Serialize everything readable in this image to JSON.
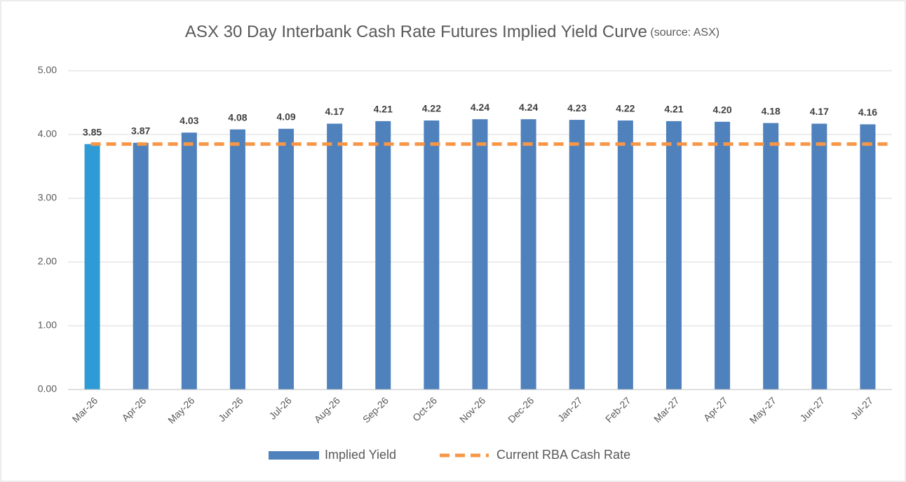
{
  "chart_data": {
    "type": "bar",
    "title": "ASX 30 Day Interbank Cash Rate Futures Implied Yield Curve",
    "subtitle": "(source: ASX)",
    "categories": [
      "Mar-26",
      "Apr-26",
      "May-26",
      "Jun-26",
      "Jul-26",
      "Aug-26",
      "Sep-26",
      "Oct-26",
      "Nov-26",
      "Dec-26",
      "Jan-27",
      "Feb-27",
      "Mar-27",
      "Apr-27",
      "May-27",
      "Jun-27",
      "Jul-27"
    ],
    "series": [
      {
        "name": "Implied Yield",
        "type": "bar",
        "color": "#4f81bd",
        "colors": [
          "#2e9bd6",
          "#4f81bd",
          "#4f81bd",
          "#4f81bd",
          "#4f81bd",
          "#4f81bd",
          "#4f81bd",
          "#4f81bd",
          "#4f81bd",
          "#4f81bd",
          "#4f81bd",
          "#4f81bd",
          "#4f81bd",
          "#4f81bd",
          "#4f81bd",
          "#4f81bd",
          "#4f81bd"
        ],
        "values": [
          3.85,
          3.87,
          4.03,
          4.08,
          4.09,
          4.17,
          4.21,
          4.22,
          4.24,
          4.24,
          4.23,
          4.22,
          4.21,
          4.2,
          4.18,
          4.17,
          4.16
        ],
        "value_labels": [
          "3.85",
          "3.87",
          "4.03",
          "4.08",
          "4.09",
          "4.17",
          "4.21",
          "4.22",
          "4.24",
          "4.24",
          "4.23",
          "4.22",
          "4.21",
          "4.20",
          "4.18",
          "4.17",
          "4.16"
        ]
      },
      {
        "name": "Current RBA  Cash Rate",
        "type": "line",
        "color": "#f79646",
        "dashed": true,
        "value": 3.85
      }
    ],
    "ylim": [
      0,
      5
    ],
    "yticks": [
      {
        "value": 0,
        "label": "0.00"
      },
      {
        "value": 1,
        "label": "1.00"
      },
      {
        "value": 2,
        "label": "2.00"
      },
      {
        "value": 3,
        "label": "3.00"
      },
      {
        "value": 4,
        "label": "4.00"
      },
      {
        "value": 5,
        "label": "5.00"
      }
    ],
    "grid": true,
    "legend": "bottom"
  }
}
